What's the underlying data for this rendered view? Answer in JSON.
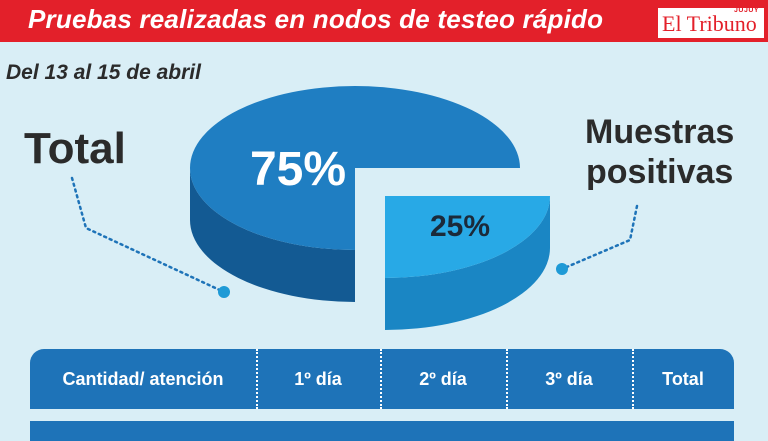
{
  "header": {
    "title": "Pruebas realizadas en nodos de testeo rápido",
    "logo": "El Tribuno",
    "logo_sub": "JUJUY"
  },
  "subtitle": "Del 13 al 15 de abril",
  "colors": {
    "header_bg": "#e3202a",
    "background": "#d9eef6",
    "pie_main_top": "#1f7ec2",
    "pie_main_side": "#135a93",
    "pie_slice_top": "#28a9e6",
    "pie_slice_side": "#1a86c4",
    "table_bg": "#1e73b8"
  },
  "chart_data": {
    "type": "pie",
    "slices": [
      {
        "label": "Total",
        "value": 75,
        "display": "75%"
      },
      {
        "label": "Muestras positivas",
        "value": 25,
        "display": "25%"
      }
    ]
  },
  "labels": {
    "total": "Total",
    "positive_line1": "Muestras",
    "positive_line2": "positivas"
  },
  "table": {
    "columns": [
      "Cantidad/ atención",
      "1º día",
      "2º día",
      "3º día",
      "Total"
    ]
  }
}
